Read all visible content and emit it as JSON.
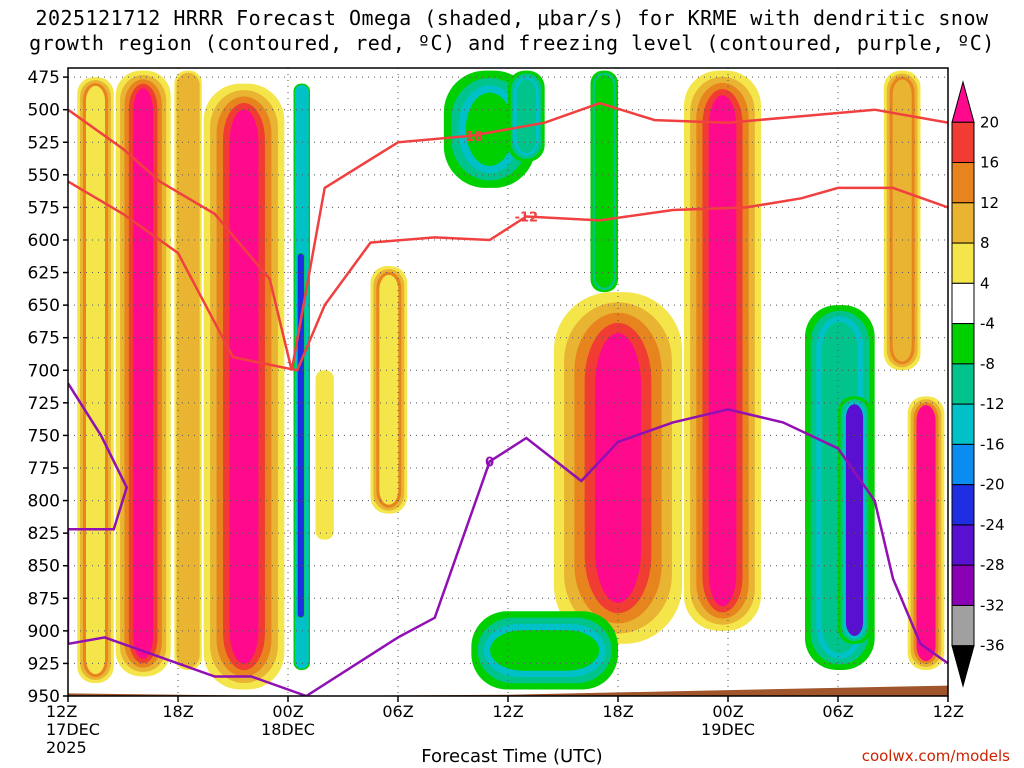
{
  "header": {
    "title_line1": "2025121712 HRRR Forecast Omega (shaded, μbar/s) for KRME with dendritic snow",
    "title_line2": "growth region (contoured, red, ºC) and freezing level (contoured, purple, ºC)"
  },
  "footer": {
    "credit": "coolwx.com/models",
    "x_axis_title": "Forecast Time (UTC)"
  },
  "chart_data": {
    "type": "heatmap",
    "title": "2025121712 HRRR Forecast Omega (shaded, μbar/s) for KRME with dendritic snow growth region (contoured, red, ºC) and freezing level (contoured, purple, ºC)",
    "xlabel": "Forecast Time (UTC)",
    "ylabel": "",
    "x_ticks": [
      {
        "hour": 0,
        "lines": [
          "12Z",
          "17DEC",
          "2025"
        ]
      },
      {
        "hour": 6,
        "lines": [
          "18Z"
        ]
      },
      {
        "hour": 12,
        "lines": [
          "00Z",
          "18DEC"
        ]
      },
      {
        "hour": 18,
        "lines": [
          "06Z"
        ]
      },
      {
        "hour": 24,
        "lines": [
          "12Z"
        ]
      },
      {
        "hour": 30,
        "lines": [
          "18Z"
        ]
      },
      {
        "hour": 36,
        "lines": [
          "00Z",
          "19DEC"
        ]
      },
      {
        "hour": 42,
        "lines": [
          "06Z"
        ]
      },
      {
        "hour": 48,
        "lines": [
          "12Z"
        ]
      }
    ],
    "xlim": [
      0,
      48
    ],
    "y_levels_mb": [
      475,
      500,
      525,
      550,
      575,
      600,
      625,
      650,
      675,
      700,
      725,
      750,
      775,
      800,
      825,
      850,
      875,
      900,
      925,
      950
    ],
    "ylim_mb": [
      950,
      468
    ],
    "colorbar": {
      "levels": [
        -36,
        -32,
        -28,
        -24,
        -20,
        -16,
        -12,
        -8,
        -4,
        4,
        8,
        12,
        16,
        20
      ],
      "label_values": [
        "20",
        "16",
        "12",
        "8",
        "4",
        "-4",
        "-8",
        "-12",
        "-16",
        "-20",
        "-24",
        "-28",
        "-32",
        "-36"
      ],
      "colors": [
        "#000000",
        "#a0a0a0",
        "#8a00b4",
        "#5a10d0",
        "#1e2ee0",
        "#0a8cf0",
        "#00c0c8",
        "#00c48c",
        "#00d000",
        "#ffffff",
        "#f4e64a",
        "#e8b432",
        "#e8841e",
        "#f03c32",
        "#ff0a8c"
      ]
    },
    "omega_bands": [
      {
        "hour_start": 0.5,
        "hour_end": 2.5,
        "p_top": 475,
        "p_bottom": 940,
        "value": 6
      },
      {
        "hour_start": 2.6,
        "hour_end": 5.6,
        "p_top": 470,
        "p_bottom": 935,
        "value": 20
      },
      {
        "hour_start": 5.8,
        "hour_end": 7.3,
        "p_top": 470,
        "p_bottom": 930,
        "value": 10
      },
      {
        "hour_start": 7.4,
        "hour_end": 11.8,
        "p_top": 480,
        "p_bottom": 945,
        "value": 20
      },
      {
        "hour_start": 12.3,
        "hour_end": 13.2,
        "p_top": 480,
        "p_bottom": 930,
        "value": -14
      },
      {
        "hour_start": 12.5,
        "hour_end": 12.9,
        "p_top": 610,
        "p_bottom": 890,
        "value": -22
      },
      {
        "hour_start": 13.5,
        "hour_end": 14.5,
        "p_top": 700,
        "p_bottom": 830,
        "value": 6
      },
      {
        "hour_start": 16.5,
        "hour_end": 18.5,
        "p_top": 620,
        "p_bottom": 810,
        "value": 6
      },
      {
        "hour_start": 20.5,
        "hour_end": 25.5,
        "p_top": 470,
        "p_bottom": 560,
        "value": -6
      },
      {
        "hour_start": 24.0,
        "hour_end": 26.0,
        "p_top": 470,
        "p_bottom": 540,
        "value": -10
      },
      {
        "hour_start": 26.5,
        "hour_end": 33.5,
        "p_top": 640,
        "p_bottom": 910,
        "value": 20
      },
      {
        "hour_start": 28.5,
        "hour_end": 30.0,
        "p_top": 470,
        "p_bottom": 640,
        "value": -6
      },
      {
        "hour_start": 33.6,
        "hour_end": 37.8,
        "p_top": 470,
        "p_bottom": 900,
        "value": 20
      },
      {
        "hour_start": 40.2,
        "hour_end": 44.0,
        "p_top": 650,
        "p_bottom": 930,
        "value": -10
      },
      {
        "hour_start": 42.0,
        "hour_end": 43.8,
        "p_top": 720,
        "p_bottom": 910,
        "value": -26
      },
      {
        "hour_start": 44.5,
        "hour_end": 46.5,
        "p_top": 470,
        "p_bottom": 700,
        "value": 10
      },
      {
        "hour_start": 45.8,
        "hour_end": 47.8,
        "p_top": 720,
        "p_bottom": 930,
        "value": 20
      },
      {
        "hour_start": 22.0,
        "hour_end": 30.0,
        "p_top": 885,
        "p_bottom": 945,
        "value": -8
      }
    ],
    "series": [
      {
        "name": "-18",
        "color": "#f04040",
        "points": [
          [
            0,
            500
          ],
          [
            3,
            530
          ],
          [
            5,
            555
          ],
          [
            8,
            580
          ],
          [
            11,
            630
          ],
          [
            12.2,
            700
          ],
          [
            14,
            560
          ],
          [
            18,
            525
          ],
          [
            22,
            520
          ],
          [
            26,
            510
          ],
          [
            29,
            495
          ],
          [
            32,
            508
          ],
          [
            36,
            510
          ],
          [
            40,
            505
          ],
          [
            44,
            500
          ],
          [
            48,
            510
          ]
        ]
      },
      {
        "name": "-12",
        "color": "#f04040",
        "points": [
          [
            0,
            555
          ],
          [
            3,
            580
          ],
          [
            6,
            610
          ],
          [
            9,
            690
          ],
          [
            12.5,
            700
          ],
          [
            14,
            650
          ],
          [
            16.5,
            602
          ],
          [
            20,
            598
          ],
          [
            23,
            600
          ],
          [
            25,
            582
          ],
          [
            29,
            585
          ],
          [
            33,
            577
          ],
          [
            37,
            575
          ],
          [
            40,
            568
          ],
          [
            42,
            560
          ],
          [
            45,
            560
          ],
          [
            48,
            575
          ]
        ]
      },
      {
        "name": "0",
        "color": "#9010b4",
        "points": [
          [
            0,
            710
          ],
          [
            1.8,
            750
          ],
          [
            3.2,
            790
          ],
          [
            2.5,
            822
          ],
          [
            0,
            822
          ],
          [
            0,
            910
          ],
          [
            2,
            905
          ],
          [
            5,
            920
          ],
          [
            8,
            935
          ],
          [
            10,
            935
          ],
          [
            12,
            945
          ],
          [
            13,
            950
          ],
          [
            18,
            905
          ],
          [
            20,
            890
          ],
          [
            23,
            770
          ],
          [
            25,
            752
          ],
          [
            28,
            785
          ],
          [
            30,
            755
          ],
          [
            33,
            740
          ],
          [
            36,
            730
          ],
          [
            39,
            740
          ],
          [
            42,
            760
          ],
          [
            44,
            800
          ],
          [
            45,
            860
          ],
          [
            46.5,
            910
          ],
          [
            48,
            925
          ]
        ]
      }
    ],
    "terrain": {
      "color": "#a0552a",
      "surface_mb_start": 948,
      "surface_mb_end": 942
    }
  }
}
